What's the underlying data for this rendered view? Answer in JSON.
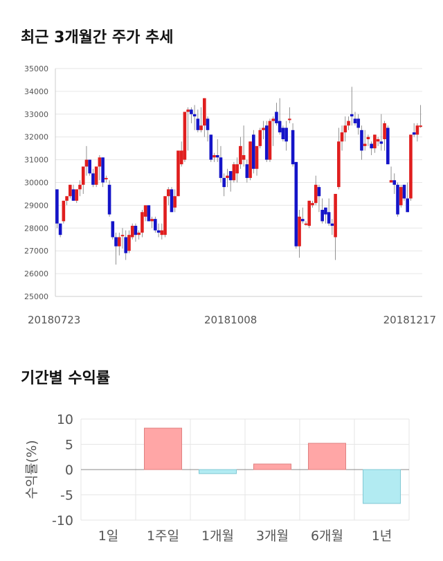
{
  "sections": {
    "stock_title": "최근 3개월간 주가 추세",
    "returns_title": "기간별 수익률"
  },
  "colors": {
    "up": "#e01e1e",
    "down": "#1414c8",
    "positive_bar": "#ffa6a6",
    "negative_bar": "#b2ebf2",
    "grid": "#e6e6e6"
  },
  "chart_data": [
    {
      "type": "candlestick",
      "title": "최근 3개월간 주가 추세",
      "ylim": [
        25000,
        35000
      ],
      "yticks": [
        "25000",
        "26000",
        "27000",
        "28000",
        "29000",
        "30000",
        "31000",
        "32000",
        "33000",
        "34000",
        "35000"
      ],
      "xtick_labels": [
        {
          "label": "20180723",
          "index": 0
        },
        {
          "label": "20181008",
          "index": 53
        },
        {
          "label": "20181217",
          "index": 105
        }
      ],
      "grid": true,
      "candles": [
        [
          29700,
          29700,
          28000,
          28200
        ],
        [
          28200,
          28200,
          27600,
          27700
        ],
        [
          28300,
          29200,
          28200,
          29200
        ],
        [
          29200,
          29400,
          29000,
          29400
        ],
        [
          29400,
          29900,
          29300,
          29900
        ],
        [
          29700,
          29900,
          29200,
          29200
        ],
        [
          29200,
          29700,
          29100,
          29700
        ],
        [
          29700,
          30100,
          29400,
          29900
        ],
        [
          29900,
          30700,
          29500,
          30700
        ],
        [
          30700,
          31600,
          30300,
          31000
        ],
        [
          31000,
          31000,
          30300,
          30400
        ],
        [
          30400,
          30600,
          29800,
          29900
        ],
        [
          29900,
          30700,
          29800,
          30700
        ],
        [
          30700,
          31200,
          30100,
          31100
        ],
        [
          31100,
          31100,
          29800,
          30000
        ],
        [
          30200,
          30300,
          30000,
          30200
        ],
        [
          29900,
          30100,
          28500,
          28600
        ],
        [
          28300,
          28300,
          27500,
          27600
        ],
        [
          27600,
          27800,
          26400,
          27200
        ],
        [
          27200,
          27800,
          26800,
          27600
        ],
        [
          27700,
          28000,
          27100,
          27700
        ],
        [
          27600,
          27900,
          26600,
          26900
        ],
        [
          27000,
          27900,
          26900,
          27700
        ],
        [
          27600,
          28200,
          27500,
          28100
        ],
        [
          28100,
          28200,
          27400,
          27700
        ],
        [
          27700,
          27900,
          27500,
          27800
        ],
        [
          27800,
          28800,
          27600,
          28700
        ],
        [
          28500,
          29000,
          28300,
          29000
        ],
        [
          29000,
          29000,
          28300,
          28300
        ],
        [
          28300,
          28500,
          28000,
          28400
        ],
        [
          28400,
          28500,
          27800,
          27900
        ],
        [
          27900,
          28200,
          27600,
          27800
        ],
        [
          27700,
          28200,
          27500,
          27900
        ],
        [
          27700,
          29400,
          27600,
          29400
        ],
        [
          29400,
          29800,
          29000,
          29700
        ],
        [
          29700,
          29800,
          28700,
          28700
        ],
        [
          28900,
          29700,
          28700,
          29400
        ],
        [
          29400,
          31400,
          29400,
          31400
        ],
        [
          30800,
          31800,
          30700,
          31400
        ],
        [
          31000,
          33100,
          30900,
          33100
        ],
        [
          33100,
          33300,
          31400,
          33200
        ],
        [
          33200,
          33300,
          32600,
          33000
        ],
        [
          33000,
          33400,
          32300,
          32900
        ],
        [
          32800,
          33200,
          32200,
          32300
        ],
        [
          32300,
          33300,
          32200,
          32500
        ],
        [
          32500,
          33700,
          32000,
          33700
        ],
        [
          32800,
          32900,
          31800,
          32300
        ],
        [
          32100,
          32100,
          30900,
          31000
        ],
        [
          31100,
          31300,
          30900,
          31200
        ],
        [
          31200,
          31900,
          30900,
          31100
        ],
        [
          31100,
          31600,
          30000,
          30200
        ],
        [
          30200,
          30400,
          29400,
          29800
        ],
        [
          30200,
          30600,
          29800,
          30300
        ],
        [
          30500,
          30500,
          29600,
          30100
        ],
        [
          30100,
          30900,
          30000,
          30800
        ],
        [
          30400,
          31100,
          30000,
          30800
        ],
        [
          30800,
          32000,
          30600,
          31600
        ],
        [
          31000,
          32500,
          30700,
          31200
        ],
        [
          30800,
          31000,
          30000,
          30200
        ],
        [
          30200,
          31800,
          30100,
          31800
        ],
        [
          32100,
          32300,
          30400,
          30600
        ],
        [
          30600,
          31600,
          30300,
          31600
        ],
        [
          31600,
          32400,
          31500,
          32300
        ],
        [
          32300,
          32700,
          31900,
          32400
        ],
        [
          32500,
          32700,
          30900,
          31000
        ],
        [
          31000,
          32800,
          30900,
          32700
        ],
        [
          32700,
          32900,
          31600,
          32800
        ],
        [
          33100,
          33500,
          32500,
          32600
        ],
        [
          32700,
          33700,
          32100,
          32200
        ],
        [
          32400,
          32500,
          31800,
          31900
        ],
        [
          32400,
          32700,
          31400,
          31800
        ],
        [
          32800,
          33300,
          32600,
          32800
        ],
        [
          32300,
          32600,
          30700,
          30800
        ],
        [
          30900,
          30900,
          27100,
          27200
        ],
        [
          27200,
          28800,
          26700,
          28500
        ],
        [
          28400,
          28900,
          28200,
          28300
        ],
        [
          28200,
          28300,
          28100,
          28200
        ],
        [
          28100,
          29200,
          28000,
          29200
        ],
        [
          29000,
          29200,
          28900,
          29100
        ],
        [
          29100,
          30300,
          29000,
          29900
        ],
        [
          29800,
          29900,
          28700,
          29400
        ],
        [
          28800,
          29300,
          28200,
          28300
        ],
        [
          28900,
          28900,
          28200,
          28600
        ],
        [
          28700,
          29300,
          28100,
          28200
        ],
        [
          28200,
          28400,
          27700,
          28100
        ],
        [
          27600,
          29500,
          26600,
          29500
        ],
        [
          29800,
          32400,
          29700,
          31800
        ],
        [
          31800,
          32500,
          31400,
          32200
        ],
        [
          32200,
          32900,
          31800,
          32500
        ],
        [
          32500,
          32900,
          32300,
          32700
        ],
        [
          33000,
          34200,
          32500,
          32900
        ],
        [
          32800,
          33100,
          32500,
          32600
        ],
        [
          32800,
          33000,
          32100,
          32400
        ],
        [
          32300,
          32500,
          31000,
          31400
        ],
        [
          31600,
          32300,
          31400,
          31700
        ],
        [
          31900,
          32100,
          31600,
          32000
        ],
        [
          31700,
          31800,
          31200,
          31500
        ],
        [
          31500,
          32100,
          31300,
          32100
        ],
        [
          31800,
          32000,
          31600,
          31900
        ],
        [
          31800,
          33000,
          31400,
          31700
        ],
        [
          31900,
          32700,
          31400,
          32600
        ],
        [
          32400,
          32500,
          30800,
          30800
        ],
        [
          30000,
          30700,
          30000,
          30100
        ],
        [
          30100,
          30400,
          29500,
          29900
        ],
        [
          29900,
          30000,
          28500,
          28600
        ],
        [
          29000,
          29900,
          28900,
          29800
        ],
        [
          29900,
          29900,
          29200,
          29300
        ],
        [
          29300,
          30000,
          28700,
          28700
        ],
        [
          29300,
          32100,
          29200,
          32100
        ],
        [
          32200,
          32600,
          32000,
          32100
        ],
        [
          32100,
          32600,
          31800,
          32500
        ],
        [
          32500,
          33400,
          32400,
          32500
        ]
      ]
    },
    {
      "type": "bar",
      "title": "기간별 수익률",
      "ylabel": "수익률(%)",
      "ylim": [
        -10,
        10
      ],
      "yticks": [
        "10",
        "5",
        "0",
        "-5",
        "-10"
      ],
      "categories": [
        "1일",
        "1주일",
        "1개월",
        "3개월",
        "6개월",
        "1년"
      ],
      "values": [
        0,
        8.2,
        -0.8,
        1.1,
        5.2,
        -6.7
      ],
      "grid": true
    }
  ]
}
